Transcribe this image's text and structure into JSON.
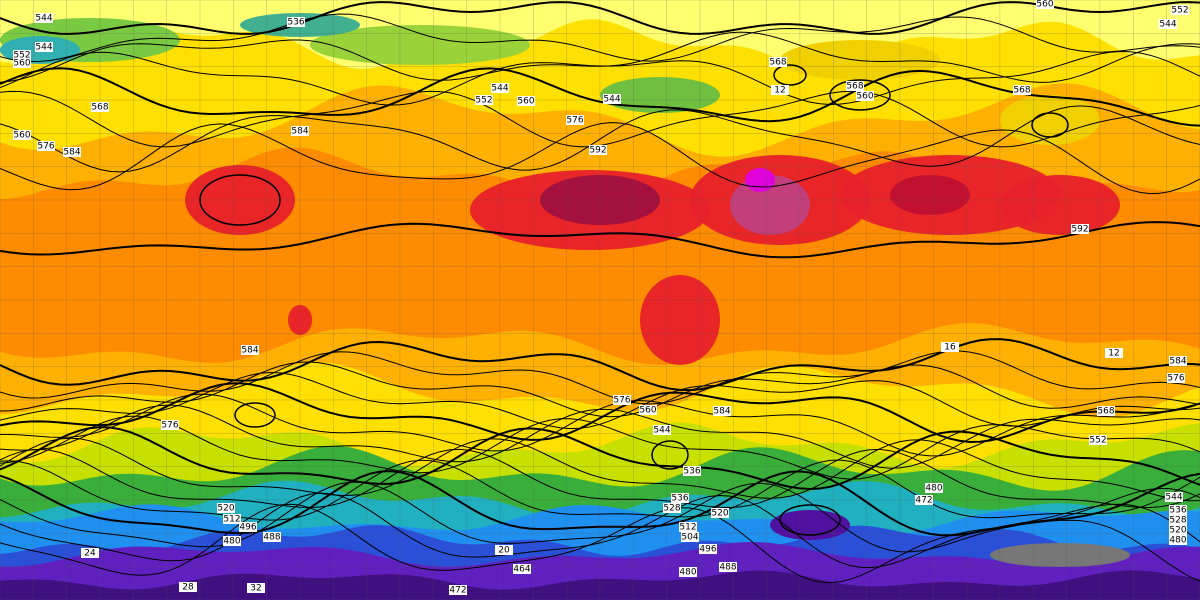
{
  "contour_labels": [
    "544",
    "536",
    "560",
    "552",
    "544",
    "544",
    "552",
    "560",
    "568",
    "560",
    "576",
    "584",
    "544",
    "552",
    "560",
    "576",
    "544",
    "568",
    "568",
    "560",
    "568",
    "584",
    "592",
    "592",
    "584",
    "576",
    "584",
    "576",
    "568",
    "552",
    "544",
    "536",
    "536",
    "528",
    "520",
    "512",
    "504",
    "496",
    "480",
    "488",
    "472",
    "480",
    "464",
    "472",
    "544",
    "536",
    "528",
    "520",
    "480",
    "520",
    "512",
    "496",
    "488",
    "480",
    "584",
    "576",
    "560",
    "20",
    "16",
    "12",
    "12",
    "24",
    "28",
    "32"
  ]
}
